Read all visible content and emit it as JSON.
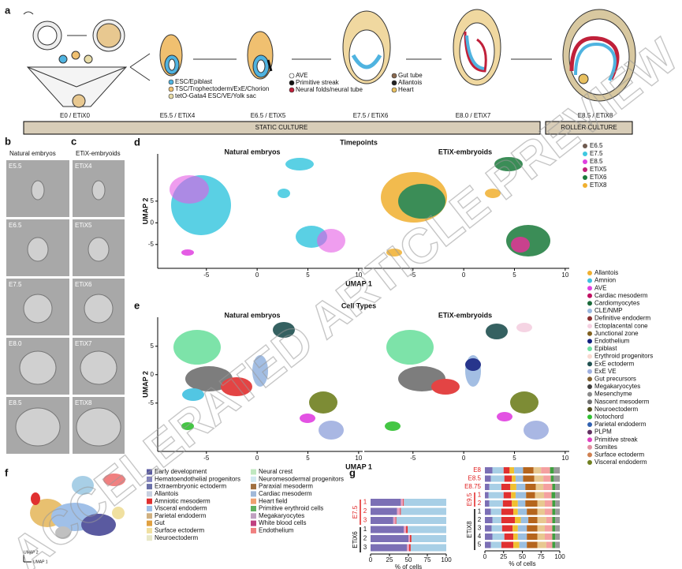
{
  "panel_a": {
    "letter": "a",
    "legend": [
      {
        "name": "ESC/Epiblast",
        "color": "#4fb3e0"
      },
      {
        "name": "TSC/Trophectoderm/ExE/Chorion",
        "color": "#f0c070"
      },
      {
        "name": "tetO-Gata4 ESC/VE/Yolk sac",
        "color": "#e8dca8"
      },
      {
        "name": "AVE",
        "color": "#ffffff"
      },
      {
        "name": "Primitive streak",
        "color": "#111111"
      },
      {
        "name": "Neural folds/neural tube",
        "color": "#c0203a"
      },
      {
        "name": "Gut tube",
        "color": "#8a6a50"
      },
      {
        "name": "Allantois",
        "color": "#222222"
      },
      {
        "name": "Heart",
        "color": "#e8c060"
      }
    ],
    "stages": [
      "E0 / ETiX0",
      "E5.5 / ETiX4",
      "E6.5 / ETiX5",
      "E7.5 / ETiX6",
      "E8.0 / ETiX7",
      "E8.5 / ETiX8"
    ],
    "static": "STATIC CULTURE",
    "roller": "ROLLER CULTURE"
  },
  "panel_b": {
    "letter": "b",
    "title": "Natural embryos",
    "labels": [
      "E5.5",
      "E6.5",
      "E7.5",
      "E8.0",
      "E8.5"
    ]
  },
  "panel_c": {
    "letter": "c",
    "title": "ETiX-embryoids",
    "labels": [
      "ETiX4",
      "ETiX5",
      "ETiX6",
      "ETiX7",
      "ETiX8"
    ]
  },
  "panel_d": {
    "letter": "d",
    "title": "Timepoints",
    "left_title": "Natural embryos",
    "right_title": "ETiX-embryoids",
    "xlabel": "UMAP 1",
    "ylabel": "UMAP 2",
    "xlim": [
      -9.8,
      10.4
    ],
    "ylim": [
      -10.5,
      15.9
    ],
    "xticks": [
      -5,
      0,
      5,
      10
    ],
    "yticks": [
      -5,
      0,
      5
    ],
    "legend": [
      {
        "name": "E6.5",
        "color": "#6e5a4f"
      },
      {
        "name": "E7.5",
        "color": "#3ec8e0"
      },
      {
        "name": "E8.5",
        "color": "#e040e0"
      },
      {
        "name": "ETiX5",
        "color": "#c0207a"
      },
      {
        "name": "ETiX6",
        "color": "#1a7a3a"
      },
      {
        "name": "ETiX8",
        "color": "#f0b030"
      }
    ]
  },
  "panel_e": {
    "letter": "e",
    "title": "Cell Types",
    "left_title": "Natural embryos",
    "right_title": "ETiX-embryoids",
    "xlabel": "UMAP 1",
    "ylabel": "UMAP 2",
    "xlim": [
      -9.8,
      10.4
    ],
    "ylim": [
      -13.5,
      10.1
    ],
    "xticks": [
      -5,
      0,
      5,
      10
    ],
    "yticks": [
      -5,
      0,
      5
    ],
    "legend": [
      {
        "name": "Allantois",
        "color": "#f0b030"
      },
      {
        "name": "Amnion",
        "color": "#40c0e0"
      },
      {
        "name": "AVE",
        "color": "#e040e0"
      },
      {
        "name": "Cardiac mesoderm",
        "color": "#c01060"
      },
      {
        "name": "Cardiomyocytes",
        "color": "#1a6a3a"
      },
      {
        "name": "CLE/NMP",
        "color": "#9ab8e0"
      },
      {
        "name": "Definitive endoderm",
        "color": "#8a3030"
      },
      {
        "name": "Ectoplacental cone",
        "color": "#f4d0e0"
      },
      {
        "name": "Junctional zone",
        "color": "#806020"
      },
      {
        "name": "Endothelium",
        "color": "#102080"
      },
      {
        "name": "Epiblast",
        "color": "#70e0a0"
      },
      {
        "name": "Erythroid progenitors",
        "color": "#f8d8d0"
      },
      {
        "name": "ExE ectoderm",
        "color": "#205050"
      },
      {
        "name": "ExE VE",
        "color": "#a0b0e0"
      },
      {
        "name": "Gut precursors",
        "color": "#806030"
      },
      {
        "name": "Megakaryocytes",
        "color": "#404040"
      },
      {
        "name": "Mesenchyme",
        "color": "#8a8a8a"
      },
      {
        "name": "Nascent mesoderm",
        "color": "#707070"
      },
      {
        "name": "Neuroectoderm",
        "color": "#505020"
      },
      {
        "name": "Notochord",
        "color": "#30c030"
      },
      {
        "name": "Parietal endoderm",
        "color": "#3060b0"
      },
      {
        "name": "PLPM",
        "color": "#603060"
      },
      {
        "name": "Primitive streak",
        "color": "#e040c0"
      },
      {
        "name": "Somites",
        "color": "#e090a0"
      },
      {
        "name": "Surface ectoderm",
        "color": "#d08050"
      },
      {
        "name": "Visceral endoderm",
        "color": "#708020"
      }
    ]
  },
  "panel_f": {
    "letter": "f",
    "axis1": "UMAP 1",
    "axis2": "UMAP 2",
    "legend_left": [
      {
        "name": "Early development",
        "color": "#5a5aa0"
      },
      {
        "name": "Hematoendothelial progenitors",
        "color": "#8080c0"
      },
      {
        "name": "Extraembryonic ectoderm",
        "color": "#6a70a8"
      },
      {
        "name": "Allantois",
        "color": "#c8d0e0"
      },
      {
        "name": "Amniotic mesoderm",
        "color": "#e03030"
      },
      {
        "name": "Visceral endoderm",
        "color": "#a0c0e8"
      },
      {
        "name": "Parietal endoderm",
        "color": "#d0b080"
      },
      {
        "name": "Gut",
        "color": "#e0a040"
      },
      {
        "name": "Surface ectoderm",
        "color": "#f0e0a0"
      },
      {
        "name": "Neuroectoderm",
        "color": "#e8e8c8"
      }
    ],
    "legend_right": [
      {
        "name": "Neural crest",
        "color": "#c0e8c0"
      },
      {
        "name": "Neuromesodermal progenitors",
        "color": "#d0e8f0"
      },
      {
        "name": "Paraxial mesoderm",
        "color": "#a07040"
      },
      {
        "name": "Cardiac mesoderm",
        "color": "#a0b8d8"
      },
      {
        "name": "Heart field",
        "color": "#f0a070"
      },
      {
        "name": "Primitive erythroid cells",
        "color": "#60b060"
      },
      {
        "name": "Megakaryocytes",
        "color": "#c0a0c0"
      },
      {
        "name": "White blood cells",
        "color": "#c04080"
      },
      {
        "name": "Endothelium",
        "color": "#f08080"
      }
    ]
  },
  "panel_g": {
    "letter": "g",
    "left": {
      "groups": [
        "E7.5",
        "ETiX6"
      ],
      "bar_labels": [
        "1",
        "2",
        "3",
        "1",
        "2",
        "3"
      ],
      "colors": [
        "#7b6fb5",
        "#e8a0c0",
        "#e03030",
        "#a8cfe6"
      ],
      "segments": [
        [
          40,
          3,
          1,
          56
        ],
        [
          35,
          4,
          1,
          60
        ],
        [
          30,
          3,
          1,
          66
        ],
        [
          44,
          3,
          2,
          51
        ],
        [
          50,
          2,
          2,
          46
        ],
        [
          48,
          3,
          2,
          47
        ]
      ],
      "xlim": [
        0,
        100
      ],
      "xticks": [
        0,
        25,
        50,
        75,
        100
      ],
      "xlabel": "% of cells"
    },
    "right": {
      "labels": [
        "E8",
        "E8.5",
        "E8.75"
      ],
      "group_e95": "E9.5",
      "e95_bars": [
        "1",
        "2"
      ],
      "group_etix8": "ETiX8",
      "etix8_bars": [
        "1",
        "2",
        "3",
        "4",
        "5"
      ],
      "colors": [
        "#7b6fb5",
        "#a8cfe6",
        "#e03030",
        "#f0c030",
        "#9bbfe0",
        "#b5651d",
        "#e8c890",
        "#f4a0a0",
        "#40a040",
        "#999999"
      ],
      "segments": [
        [
          10,
          15,
          8,
          6,
          12,
          14,
          10,
          12,
          5,
          8
        ],
        [
          8,
          18,
          10,
          5,
          10,
          15,
          12,
          10,
          4,
          8
        ],
        [
          6,
          16,
          12,
          8,
          12,
          14,
          10,
          12,
          4,
          6
        ],
        [
          5,
          20,
          10,
          6,
          14,
          12,
          12,
          10,
          5,
          6
        ],
        [
          6,
          18,
          12,
          8,
          10,
          16,
          10,
          10,
          4,
          6
        ],
        [
          8,
          14,
          16,
          6,
          12,
          14,
          10,
          10,
          4,
          6
        ],
        [
          10,
          12,
          18,
          8,
          10,
          12,
          12,
          8,
          4,
          6
        ],
        [
          9,
          14,
          14,
          7,
          12,
          14,
          10,
          10,
          4,
          6
        ],
        [
          10,
          16,
          12,
          6,
          12,
          14,
          10,
          10,
          4,
          6
        ],
        [
          8,
          14,
          16,
          8,
          10,
          14,
          12,
          8,
          4,
          6
        ]
      ],
      "xlim": [
        0,
        100
      ],
      "xticks": [
        0,
        25,
        50,
        75,
        100
      ],
      "xlabel": "% of cells"
    }
  },
  "watermark": "ACCELERATED ARTICLE PREVIEW"
}
